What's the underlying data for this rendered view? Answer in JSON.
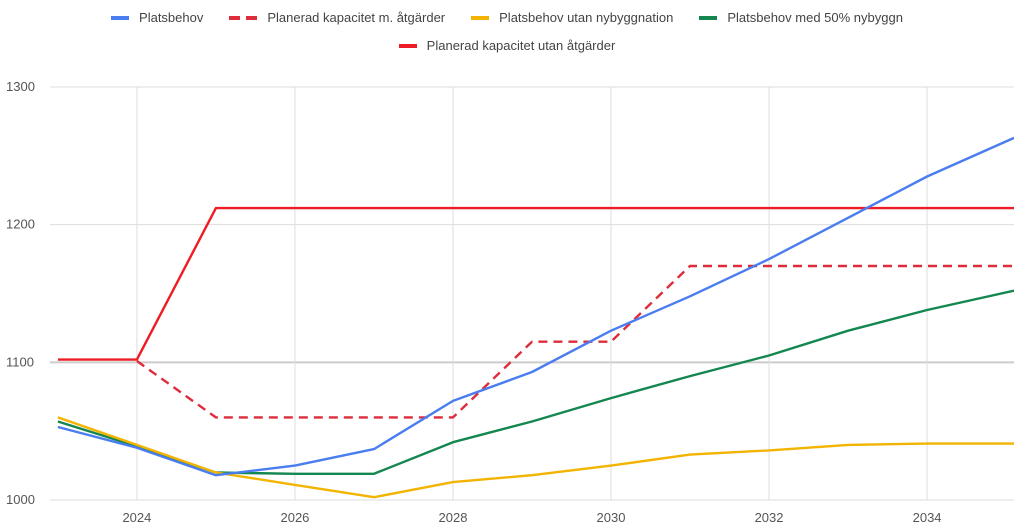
{
  "chart_data": {
    "type": "line",
    "title": "",
    "xlabel": "",
    "ylabel": "",
    "xlim": [
      2022.9,
      2035.1
    ],
    "ylim": [
      1000,
      1300
    ],
    "x_ticks": [
      2024,
      2026,
      2028,
      2030,
      2032,
      2034
    ],
    "x_tick_labels": [
      "2024",
      "2026",
      "2028",
      "2030",
      "2032",
      "2034"
    ],
    "y_ticks": [
      1000,
      1100,
      1200,
      1300
    ],
    "y_tick_labels": [
      "1000",
      "1100",
      "1200",
      "1300"
    ],
    "grid": true,
    "legend_position": "top",
    "series": [
      {
        "name": "Platsbehov",
        "color": "#4a7df0",
        "style": "solid",
        "x": [
          2023,
          2024,
          2025,
          2026,
          2027,
          2028,
          2029,
          2030,
          2031,
          2032,
          2033,
          2034,
          2035.1
        ],
        "y": [
          1053,
          1038,
          1018,
          1025,
          1037,
          1072,
          1093,
          1123,
          1148,
          1175,
          1205,
          1235,
          1263
        ]
      },
      {
        "name": "Planerad kapacitet m. åtgärder",
        "color": "#dd2c3a",
        "style": "dashed",
        "x": [
          2024,
          2025,
          2026,
          2027,
          2028,
          2029,
          2030,
          2031,
          2032,
          2033,
          2034,
          2035.1
        ],
        "y": [
          1101,
          1060,
          1060,
          1060,
          1060,
          1115,
          1115,
          1170,
          1170,
          1170,
          1170,
          1170
        ]
      },
      {
        "name": "Platsbehov utan nybyggnation",
        "color": "#f2b400",
        "style": "solid",
        "x": [
          2023,
          2024,
          2025,
          2026,
          2027,
          2028,
          2029,
          2030,
          2031,
          2032,
          2033,
          2034,
          2035.1
        ],
        "y": [
          1060,
          1040,
          1020,
          1011,
          1002,
          1013,
          1018,
          1025,
          1033,
          1036,
          1040,
          1041,
          1041
        ]
      },
      {
        "name": "Platsbehov med 50% nybyggn",
        "color": "#13874f",
        "style": "solid",
        "x": [
          2023,
          2024,
          2025,
          2026,
          2027,
          2028,
          2029,
          2030,
          2031,
          2032,
          2033,
          2034,
          2035.1
        ],
        "y": [
          1057,
          1039,
          1020,
          1019,
          1019,
          1042,
          1057,
          1074,
          1090,
          1105,
          1123,
          1138,
          1152
        ]
      },
      {
        "name": "Planerad kapacitet utan åtgärder",
        "color": "#ee1c25",
        "style": "solid",
        "x": [
          2023,
          2024,
          2025,
          2026,
          2028,
          2030,
          2032,
          2034,
          2035.1
        ],
        "y": [
          1102,
          1102,
          1212,
          1212,
          1212,
          1212,
          1212,
          1212,
          1212
        ]
      }
    ]
  }
}
